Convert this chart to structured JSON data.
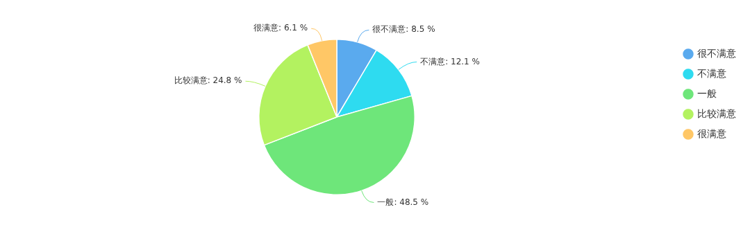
{
  "chart_data": {
    "type": "pie",
    "categories": [
      "很不满意",
      "不满意",
      "一般",
      "比较满意",
      "很满意"
    ],
    "values": [
      8.5,
      12.1,
      48.5,
      24.8,
      6.1
    ],
    "colors": [
      "#5aaaee",
      "#2edbf0",
      "#6ee67a",
      "#b3f260",
      "#ffc766"
    ],
    "value_labels": [
      "很不满意: 8.5 %",
      "不满意: 12.1 %",
      "一般: 48.5 %",
      "比较满意: 24.8 %",
      "很满意: 6.1 %"
    ],
    "legend": "top right"
  }
}
